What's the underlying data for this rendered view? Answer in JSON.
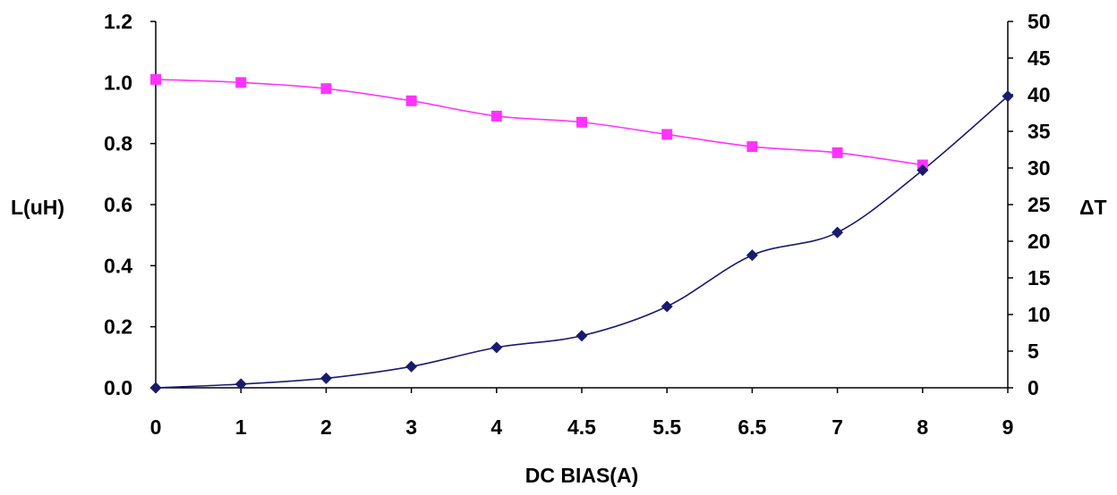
{
  "chart_data": {
    "type": "line",
    "title": "",
    "xlabel": "DC BIAS(A)",
    "ylabel_left": "L(uH)",
    "ylabel_right": "ΔT",
    "categories": [
      "0",
      "1",
      "2",
      "3",
      "4",
      "4.5",
      "5.5",
      "6.5",
      "7",
      "8",
      "9"
    ],
    "y_left": {
      "min": 0,
      "max": 1.2,
      "step": 0.2,
      "tick_labels": [
        "0.0",
        "0.2",
        "0.4",
        "0.6",
        "0.8",
        "1.0",
        "1.2"
      ]
    },
    "y_right": {
      "min": 0,
      "max": 50,
      "step": 5,
      "tick_labels": [
        "0",
        "5",
        "10",
        "15",
        "20",
        "25",
        "30",
        "35",
        "40",
        "45",
        "50"
      ]
    },
    "grid": false,
    "legend": "none",
    "series": [
      {
        "axis": "left",
        "color": "#ff33ff",
        "marker": "square",
        "values": [
          1.01,
          1.0,
          0.98,
          0.94,
          0.89,
          0.87,
          0.83,
          0.79,
          0.77,
          0.73,
          null
        ]
      },
      {
        "axis": "right",
        "color": "#1a1a6e",
        "marker": "diamond",
        "values": [
          0,
          0.5,
          1.3,
          2.9,
          5.5,
          7.1,
          11.1,
          18.1,
          21.2,
          29.7,
          39.8
        ]
      }
    ]
  }
}
